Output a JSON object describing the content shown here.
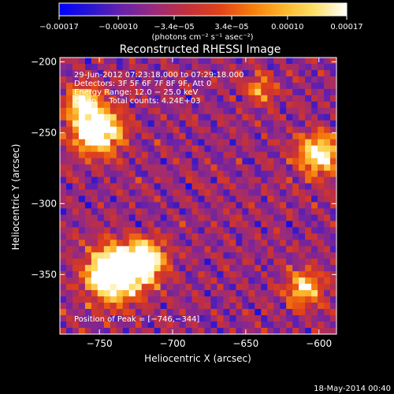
{
  "chart_data": {
    "type": "heatmap",
    "title": "Reconstructed RHESSI Image",
    "xlabel": "Heliocentric X (arcsec)",
    "ylabel": "Heliocentric Y (arcsec)",
    "xlim": [
      -777,
      -588
    ],
    "ylim": [
      -392,
      -197
    ],
    "x_ticks": [
      -750,
      -700,
      -650,
      -600
    ],
    "y_ticks": [
      -200,
      -250,
      -300,
      -350
    ],
    "x_tick_labels": [
      "−750",
      "−700",
      "−650",
      "−600"
    ],
    "y_tick_labels": [
      "−200",
      "−250",
      "−300",
      "−350"
    ],
    "colorbar": {
      "ticks": [
        -0.00017,
        -0.0001,
        -3.4e-05,
        3.4e-05,
        0.0001,
        0.00017
      ],
      "tick_labels": [
        "−0.00017",
        "−0.00010",
        "−3.4e−05",
        "3.4e−05",
        "0.00010",
        "0.00017"
      ],
      "range": [
        -0.00017,
        0.00017
      ],
      "unit_label": "(photons cm⁻² s⁻¹ asec⁻²)",
      "colormap": [
        "#0000ff",
        "#2a16d0",
        "#6a22a8",
        "#9a2b7a",
        "#c2303c",
        "#e0401a",
        "#f57a0c",
        "#fbb42a",
        "#fde068",
        "#ffffff"
      ]
    },
    "annotations": [
      "29-Jun-2012 07:23:18.000 to 07:29:18.000",
      "Detectors: 3F 5F 6F 7F 8F 9F, Att 0",
      "Energy Range: 12.0 − 25.0 keV",
      "Clean     Total counts: 4.24E+03"
    ],
    "peak_label": "Position of Peak = [−746,−344]",
    "peak_position": [
      -746,
      -344
    ],
    "timestamp": "18-May-2014 00:40"
  }
}
